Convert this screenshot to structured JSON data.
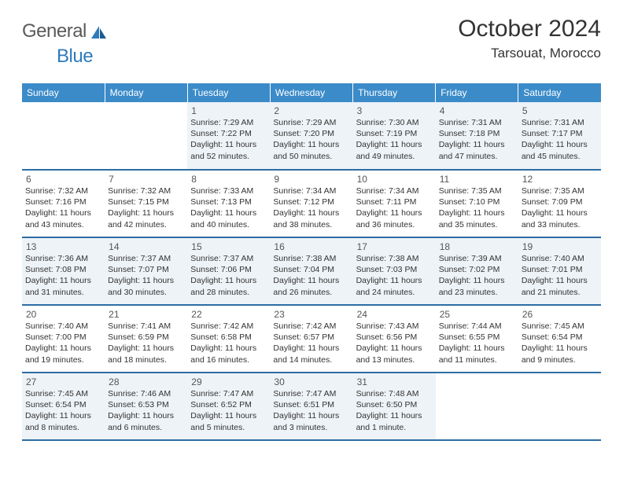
{
  "logo": {
    "general": "General",
    "blue": "Blue"
  },
  "title": "October 2024",
  "location": "Tarsouat, Morocco",
  "colors": {
    "header_bg": "#3b8bc9",
    "header_text": "#ffffff",
    "row_border": "#2d6da3",
    "shade_bg": "#eef3f7",
    "logo_blue": "#2d7bbd"
  },
  "weekdays": [
    "Sunday",
    "Monday",
    "Tuesday",
    "Wednesday",
    "Thursday",
    "Friday",
    "Saturday"
  ],
  "cells": [
    {
      "blank": true
    },
    {
      "blank": true
    },
    {
      "n": "1",
      "a": "Sunrise: 7:29 AM",
      "b": "Sunset: 7:22 PM",
      "c": "Daylight: 11 hours",
      "d": "and 52 minutes."
    },
    {
      "n": "2",
      "a": "Sunrise: 7:29 AM",
      "b": "Sunset: 7:20 PM",
      "c": "Daylight: 11 hours",
      "d": "and 50 minutes."
    },
    {
      "n": "3",
      "a": "Sunrise: 7:30 AM",
      "b": "Sunset: 7:19 PM",
      "c": "Daylight: 11 hours",
      "d": "and 49 minutes."
    },
    {
      "n": "4",
      "a": "Sunrise: 7:31 AM",
      "b": "Sunset: 7:18 PM",
      "c": "Daylight: 11 hours",
      "d": "and 47 minutes."
    },
    {
      "n": "5",
      "a": "Sunrise: 7:31 AM",
      "b": "Sunset: 7:17 PM",
      "c": "Daylight: 11 hours",
      "d": "and 45 minutes."
    },
    {
      "n": "6",
      "a": "Sunrise: 7:32 AM",
      "b": "Sunset: 7:16 PM",
      "c": "Daylight: 11 hours",
      "d": "and 43 minutes."
    },
    {
      "n": "7",
      "a": "Sunrise: 7:32 AM",
      "b": "Sunset: 7:15 PM",
      "c": "Daylight: 11 hours",
      "d": "and 42 minutes."
    },
    {
      "n": "8",
      "a": "Sunrise: 7:33 AM",
      "b": "Sunset: 7:13 PM",
      "c": "Daylight: 11 hours",
      "d": "and 40 minutes."
    },
    {
      "n": "9",
      "a": "Sunrise: 7:34 AM",
      "b": "Sunset: 7:12 PM",
      "c": "Daylight: 11 hours",
      "d": "and 38 minutes."
    },
    {
      "n": "10",
      "a": "Sunrise: 7:34 AM",
      "b": "Sunset: 7:11 PM",
      "c": "Daylight: 11 hours",
      "d": "and 36 minutes."
    },
    {
      "n": "11",
      "a": "Sunrise: 7:35 AM",
      "b": "Sunset: 7:10 PM",
      "c": "Daylight: 11 hours",
      "d": "and 35 minutes."
    },
    {
      "n": "12",
      "a": "Sunrise: 7:35 AM",
      "b": "Sunset: 7:09 PM",
      "c": "Daylight: 11 hours",
      "d": "and 33 minutes."
    },
    {
      "n": "13",
      "a": "Sunrise: 7:36 AM",
      "b": "Sunset: 7:08 PM",
      "c": "Daylight: 11 hours",
      "d": "and 31 minutes."
    },
    {
      "n": "14",
      "a": "Sunrise: 7:37 AM",
      "b": "Sunset: 7:07 PM",
      "c": "Daylight: 11 hours",
      "d": "and 30 minutes."
    },
    {
      "n": "15",
      "a": "Sunrise: 7:37 AM",
      "b": "Sunset: 7:06 PM",
      "c": "Daylight: 11 hours",
      "d": "and 28 minutes."
    },
    {
      "n": "16",
      "a": "Sunrise: 7:38 AM",
      "b": "Sunset: 7:04 PM",
      "c": "Daylight: 11 hours",
      "d": "and 26 minutes."
    },
    {
      "n": "17",
      "a": "Sunrise: 7:38 AM",
      "b": "Sunset: 7:03 PM",
      "c": "Daylight: 11 hours",
      "d": "and 24 minutes."
    },
    {
      "n": "18",
      "a": "Sunrise: 7:39 AM",
      "b": "Sunset: 7:02 PM",
      "c": "Daylight: 11 hours",
      "d": "and 23 minutes."
    },
    {
      "n": "19",
      "a": "Sunrise: 7:40 AM",
      "b": "Sunset: 7:01 PM",
      "c": "Daylight: 11 hours",
      "d": "and 21 minutes."
    },
    {
      "n": "20",
      "a": "Sunrise: 7:40 AM",
      "b": "Sunset: 7:00 PM",
      "c": "Daylight: 11 hours",
      "d": "and 19 minutes."
    },
    {
      "n": "21",
      "a": "Sunrise: 7:41 AM",
      "b": "Sunset: 6:59 PM",
      "c": "Daylight: 11 hours",
      "d": "and 18 minutes."
    },
    {
      "n": "22",
      "a": "Sunrise: 7:42 AM",
      "b": "Sunset: 6:58 PM",
      "c": "Daylight: 11 hours",
      "d": "and 16 minutes."
    },
    {
      "n": "23",
      "a": "Sunrise: 7:42 AM",
      "b": "Sunset: 6:57 PM",
      "c": "Daylight: 11 hours",
      "d": "and 14 minutes."
    },
    {
      "n": "24",
      "a": "Sunrise: 7:43 AM",
      "b": "Sunset: 6:56 PM",
      "c": "Daylight: 11 hours",
      "d": "and 13 minutes."
    },
    {
      "n": "25",
      "a": "Sunrise: 7:44 AM",
      "b": "Sunset: 6:55 PM",
      "c": "Daylight: 11 hours",
      "d": "and 11 minutes."
    },
    {
      "n": "26",
      "a": "Sunrise: 7:45 AM",
      "b": "Sunset: 6:54 PM",
      "c": "Daylight: 11 hours",
      "d": "and 9 minutes."
    },
    {
      "n": "27",
      "a": "Sunrise: 7:45 AM",
      "b": "Sunset: 6:54 PM",
      "c": "Daylight: 11 hours",
      "d": "and 8 minutes."
    },
    {
      "n": "28",
      "a": "Sunrise: 7:46 AM",
      "b": "Sunset: 6:53 PM",
      "c": "Daylight: 11 hours",
      "d": "and 6 minutes."
    },
    {
      "n": "29",
      "a": "Sunrise: 7:47 AM",
      "b": "Sunset: 6:52 PM",
      "c": "Daylight: 11 hours",
      "d": "and 5 minutes."
    },
    {
      "n": "30",
      "a": "Sunrise: 7:47 AM",
      "b": "Sunset: 6:51 PM",
      "c": "Daylight: 11 hours",
      "d": "and 3 minutes."
    },
    {
      "n": "31",
      "a": "Sunrise: 7:48 AM",
      "b": "Sunset: 6:50 PM",
      "c": "Daylight: 11 hours",
      "d": "and 1 minute."
    },
    {
      "blank": true
    },
    {
      "blank": true
    }
  ]
}
